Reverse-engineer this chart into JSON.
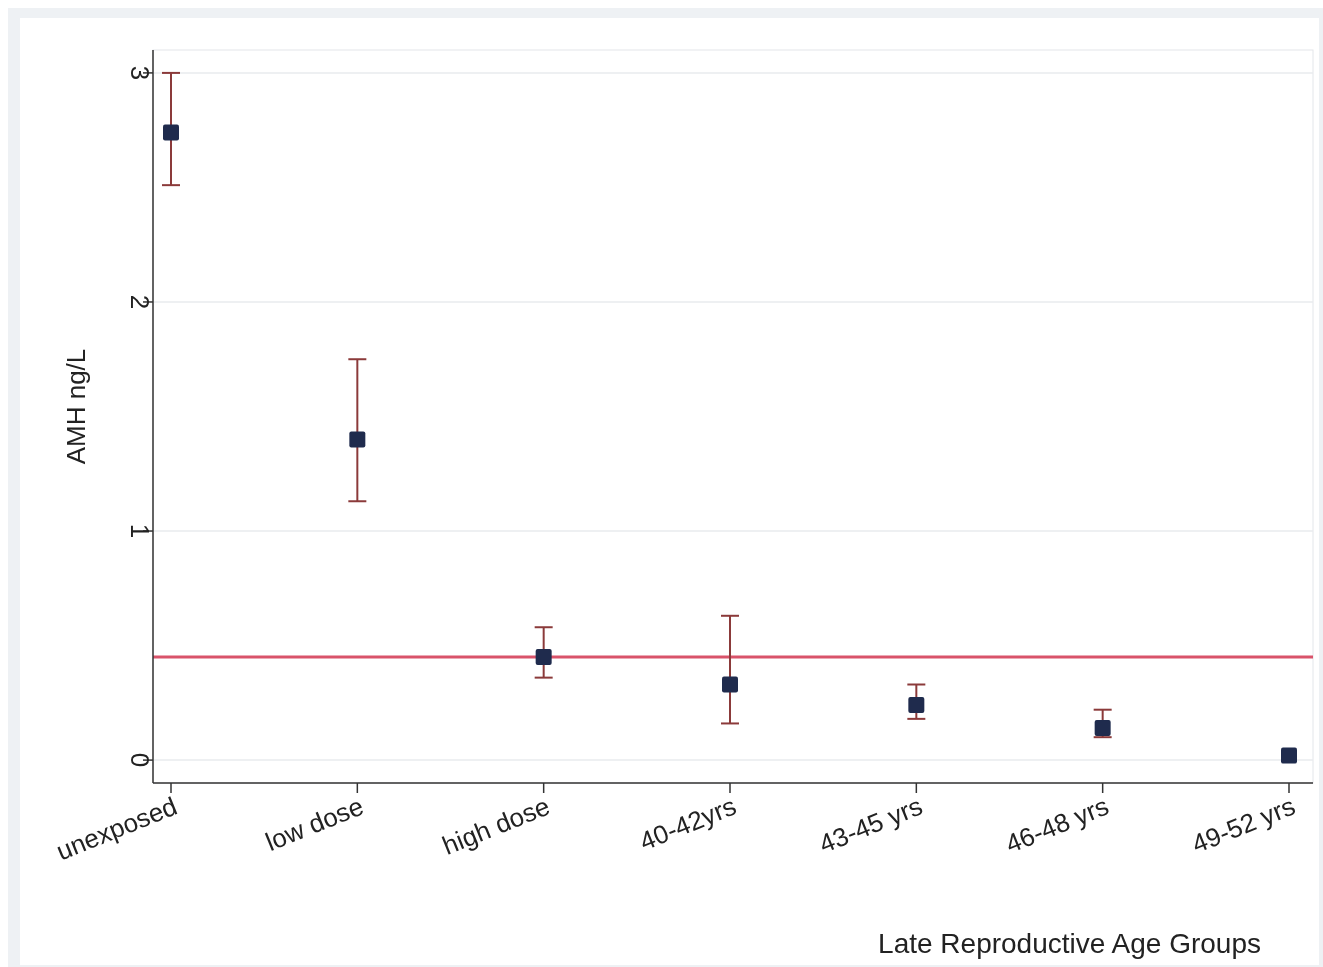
{
  "chart_data": {
    "type": "scatter",
    "xlabel": "Late Reproductive Age Groups",
    "ylabel": "AMH ng/L",
    "categories": [
      "unexposed",
      "low dose",
      "high dose",
      "40-42yrs",
      "43-45 yrs",
      "46-48 yrs",
      "49-52 yrs"
    ],
    "values": [
      2.74,
      1.4,
      0.45,
      0.33,
      0.24,
      0.14,
      0.02
    ],
    "errors": [
      [
        2.51,
        3.0
      ],
      [
        1.13,
        1.75
      ],
      [
        0.36,
        0.58
      ],
      [
        0.16,
        0.63
      ],
      [
        0.18,
        0.33
      ],
      [
        0.1,
        0.22
      ],
      null
    ],
    "color": "#1f2b4d",
    "marker": "square",
    "ylim": [
      -0.1,
      3.1
    ],
    "yticks": [
      0,
      1,
      2,
      3
    ],
    "grid": "y",
    "ref_lines": [
      {
        "axis": "y",
        "value": 0.45,
        "color": "#d9536a"
      }
    ]
  }
}
